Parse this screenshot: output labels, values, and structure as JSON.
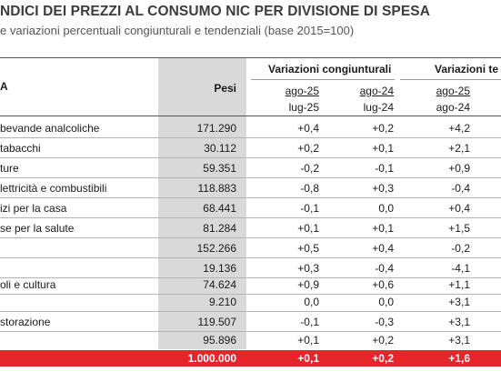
{
  "title": "NDICI DEI PREZZI AL CONSUMO NIC PER DIVISIONE DI SPESA",
  "subtitle": "e variazioni percentuali congiunturali e tendenziali (base 2015=100)",
  "header": {
    "label": "A",
    "pesi": "Pesi",
    "group_congiunturali": "Variazioni congiunturali",
    "group_tendenziali": "Variazioni te",
    "cols": [
      {
        "top": "ago-25",
        "bottom": "lug-25"
      },
      {
        "top": "ago-24",
        "bottom": "lug-24"
      },
      {
        "top": "ago-25",
        "bottom": "ago-24"
      }
    ]
  },
  "rows": [
    {
      "label": "bevande analcoliche",
      "pesi": "171.290",
      "v1": "+0,4",
      "v2": "+0,2",
      "v3": "+4,2"
    },
    {
      "label": "tabacchi",
      "pesi": "30.112",
      "v1": "+0,2",
      "v2": "+0,1",
      "v3": "+2,1"
    },
    {
      "label": "ture",
      "pesi": "59.351",
      "v1": "-0,2",
      "v2": "-0,1",
      "v3": "+0,9"
    },
    {
      "label": "lettricità e combustibili",
      "pesi": "118.883",
      "v1": "-0,8",
      "v2": "+0,3",
      "v3": "-0,4"
    },
    {
      "label": "izi per la casa",
      "pesi": "68.441",
      "v1": "-0,1",
      "v2": "0,0",
      "v3": "+0,4"
    },
    {
      "label": "se per la salute",
      "pesi": "81.284",
      "v1": "+0,1",
      "v2": "+0,1",
      "v3": "+1,5"
    },
    {
      "label": "",
      "pesi": "152.266",
      "v1": "+0,5",
      "v2": "+0,4",
      "v3": "-0,2"
    },
    {
      "label": "",
      "pesi": "19.136",
      "v1": "+0,3",
      "v2": "-0,4",
      "v3": "-4,1"
    },
    {
      "label": "oli e cultura",
      "pesi": "74.624",
      "v1": "+0,9",
      "v2": "+0,6",
      "v3": "+1,1"
    },
    {
      "label": "",
      "pesi": "9.210",
      "v1": "0,0",
      "v2": "0,0",
      "v3": "+3,1"
    },
    {
      "label": "storazione",
      "pesi": "119.507",
      "v1": "-0,1",
      "v2": "-0,3",
      "v3": "+3,1"
    },
    {
      "label": "",
      "pesi": "95.896",
      "v1": "+0,1",
      "v2": "+0,2",
      "v3": "+3,1"
    }
  ],
  "total": {
    "pesi": "1.000.000",
    "v1": "+0,1",
    "v2": "+0,2",
    "v3": "+1,6"
  },
  "colors": {
    "accent": "#e8242b",
    "pesi_bg": "#d9d9d9"
  }
}
